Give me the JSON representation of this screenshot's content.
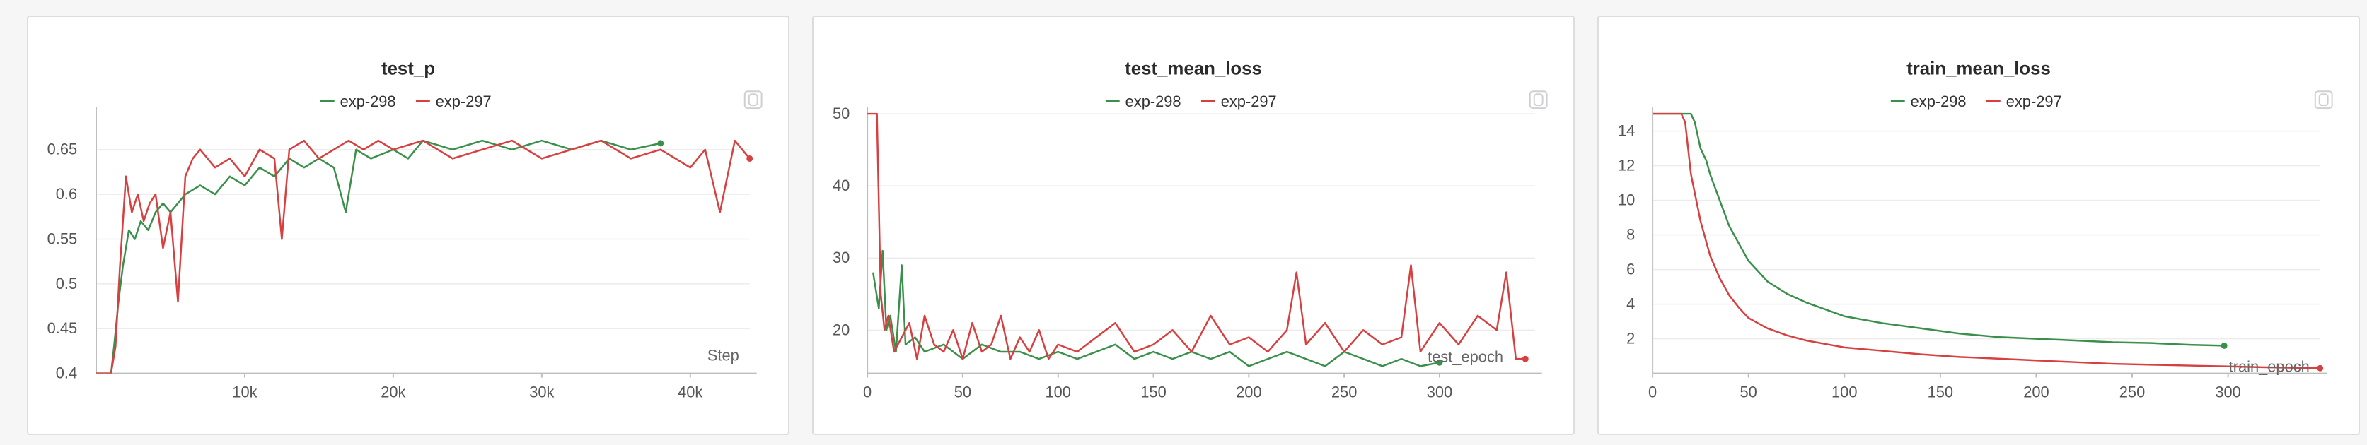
{
  "colors": {
    "exp-298": "#3a8f4b",
    "exp-297": "#d64040"
  },
  "chart_data": [
    {
      "type": "line",
      "title": "test_p",
      "xlabel": "Step",
      "xlim": [
        0,
        44000
      ],
      "ylim": [
        0.4,
        0.69
      ],
      "xticks": [
        10000,
        20000,
        30000,
        40000
      ],
      "xtick_labels": [
        "10k",
        "20k",
        "30k",
        "40k"
      ],
      "yticks": [
        0.4,
        0.45,
        0.5,
        0.55,
        0.6,
        0.65
      ],
      "ytick_labels": [
        "0.4",
        "0.45",
        "0.5",
        "0.55",
        "0.6",
        "0.65"
      ],
      "series": [
        {
          "name": "exp-298",
          "color": "#3a8f4b",
          "x": [
            0,
            500,
            1000,
            1200,
            1500,
            1800,
            2200,
            2600,
            3000,
            3500,
            4000,
            4500,
            5000,
            6000,
            7000,
            8000,
            9000,
            10000,
            11000,
            12000,
            13000,
            14000,
            15000,
            16000,
            16800,
            17500,
            18500,
            20000,
            21000,
            22000,
            24000,
            26000,
            28000,
            30000,
            32000,
            34000,
            36000,
            38000
          ],
          "y": [
            0.4,
            0.4,
            0.4,
            0.43,
            0.48,
            0.52,
            0.56,
            0.55,
            0.57,
            0.56,
            0.58,
            0.59,
            0.58,
            0.6,
            0.61,
            0.6,
            0.62,
            0.61,
            0.63,
            0.62,
            0.64,
            0.63,
            0.64,
            0.63,
            0.58,
            0.65,
            0.64,
            0.65,
            0.64,
            0.66,
            0.65,
            0.66,
            0.65,
            0.66,
            0.65,
            0.66,
            0.65,
            0.657
          ]
        },
        {
          "name": "exp-297",
          "color": "#d64040",
          "x": [
            0,
            500,
            1000,
            1300,
            1600,
            2000,
            2400,
            2800,
            3200,
            3600,
            4000,
            4500,
            5000,
            5500,
            6000,
            6500,
            7000,
            8000,
            9000,
            10000,
            11000,
            12000,
            12500,
            13000,
            14000,
            15000,
            16000,
            17000,
            18000,
            19000,
            20000,
            22000,
            24000,
            26000,
            28000,
            30000,
            32000,
            34000,
            36000,
            38000,
            40000,
            41000,
            42000,
            43000,
            44000
          ],
          "y": [
            0.4,
            0.4,
            0.4,
            0.43,
            0.52,
            0.62,
            0.58,
            0.6,
            0.57,
            0.59,
            0.6,
            0.54,
            0.58,
            0.48,
            0.62,
            0.64,
            0.65,
            0.63,
            0.64,
            0.62,
            0.65,
            0.64,
            0.55,
            0.65,
            0.66,
            0.64,
            0.65,
            0.66,
            0.65,
            0.66,
            0.65,
            0.66,
            0.64,
            0.65,
            0.66,
            0.64,
            0.65,
            0.66,
            0.64,
            0.65,
            0.63,
            0.65,
            0.58,
            0.66,
            0.64
          ]
        }
      ]
    },
    {
      "type": "line",
      "title": "test_mean_loss",
      "xlabel": "test_epoch",
      "xlim": [
        0,
        350
      ],
      "ylim": [
        14,
        50
      ],
      "xticks": [
        0,
        50,
        100,
        150,
        200,
        250,
        300
      ],
      "xtick_labels": [
        "0",
        "50",
        "100",
        "150",
        "200",
        "250",
        "300"
      ],
      "yticks": [
        20,
        30,
        40,
        50
      ],
      "ytick_labels": [
        "20",
        "30",
        "40",
        "50"
      ],
      "series": [
        {
          "name": "exp-298",
          "color": "#3a8f4b",
          "x": [
            3,
            6,
            8,
            10,
            12,
            15,
            18,
            20,
            25,
            30,
            40,
            50,
            60,
            70,
            80,
            90,
            100,
            110,
            120,
            130,
            140,
            150,
            160,
            170,
            180,
            190,
            200,
            210,
            220,
            230,
            240,
            250,
            260,
            270,
            280,
            290,
            300
          ],
          "y": [
            28,
            23,
            31,
            20,
            22,
            17,
            29,
            18,
            19,
            17,
            18,
            16,
            18,
            17,
            17,
            16,
            17,
            16,
            17,
            18,
            16,
            17,
            16,
            17,
            16,
            17,
            15,
            16,
            17,
            16,
            15,
            17,
            16,
            15,
            16,
            15,
            15.5
          ]
        },
        {
          "name": "exp-297",
          "color": "#d64040",
          "x": [
            0,
            5,
            7,
            9,
            11,
            14,
            18,
            22,
            26,
            30,
            35,
            40,
            45,
            50,
            55,
            60,
            65,
            70,
            75,
            80,
            85,
            90,
            95,
            100,
            110,
            120,
            130,
            140,
            150,
            160,
            170,
            180,
            190,
            200,
            210,
            220,
            225,
            230,
            240,
            250,
            260,
            270,
            280,
            285,
            290,
            300,
            310,
            320,
            330,
            335,
            340,
            345
          ],
          "y": [
            50,
            50,
            25,
            20,
            22,
            17,
            19,
            21,
            16,
            22,
            18,
            17,
            20,
            16,
            21,
            17,
            18,
            22,
            16,
            19,
            17,
            20,
            16,
            18,
            17,
            19,
            21,
            17,
            18,
            20,
            17,
            22,
            18,
            19,
            17,
            20,
            28,
            18,
            21,
            17,
            20,
            18,
            19,
            29,
            17,
            21,
            18,
            22,
            20,
            28,
            16,
            16
          ]
        }
      ]
    },
    {
      "type": "line",
      "title": "train_mean_loss",
      "xlabel": "train_epoch",
      "xlim": [
        0,
        348
      ],
      "ylim": [
        0,
        15
      ],
      "xticks": [
        0,
        50,
        100,
        150,
        200,
        250,
        300
      ],
      "xtick_labels": [
        "0",
        "50",
        "100",
        "150",
        "200",
        "250",
        "300"
      ],
      "yticks": [
        2,
        4,
        6,
        8,
        10,
        12,
        14
      ],
      "ytick_labels": [
        "2",
        "4",
        "6",
        "8",
        "10",
        "12",
        "14"
      ],
      "series": [
        {
          "name": "exp-298",
          "color": "#3a8f4b",
          "x": [
            0,
            5,
            10,
            15,
            20,
            22,
            25,
            28,
            30,
            35,
            40,
            45,
            50,
            60,
            70,
            80,
            90,
            100,
            120,
            140,
            160,
            180,
            200,
            220,
            240,
            260,
            280,
            298
          ],
          "y": [
            15,
            15,
            15,
            15,
            15,
            14.5,
            13.0,
            12.3,
            11.5,
            10.0,
            8.5,
            7.5,
            6.5,
            5.3,
            4.6,
            4.1,
            3.7,
            3.3,
            2.9,
            2.6,
            2.3,
            2.1,
            2.0,
            1.9,
            1.8,
            1.75,
            1.65,
            1.6
          ]
        },
        {
          "name": "exp-297",
          "color": "#d64040",
          "x": [
            0,
            5,
            10,
            15,
            17,
            20,
            25,
            30,
            35,
            40,
            45,
            50,
            60,
            70,
            80,
            90,
            100,
            120,
            140,
            160,
            180,
            200,
            220,
            240,
            260,
            280,
            300,
            320,
            348
          ],
          "y": [
            15,
            15,
            15,
            15,
            14.5,
            11.5,
            8.8,
            6.8,
            5.5,
            4.5,
            3.8,
            3.2,
            2.6,
            2.2,
            1.9,
            1.7,
            1.5,
            1.3,
            1.1,
            0.95,
            0.85,
            0.75,
            0.65,
            0.55,
            0.5,
            0.45,
            0.4,
            0.35,
            0.3
          ]
        }
      ]
    }
  ]
}
